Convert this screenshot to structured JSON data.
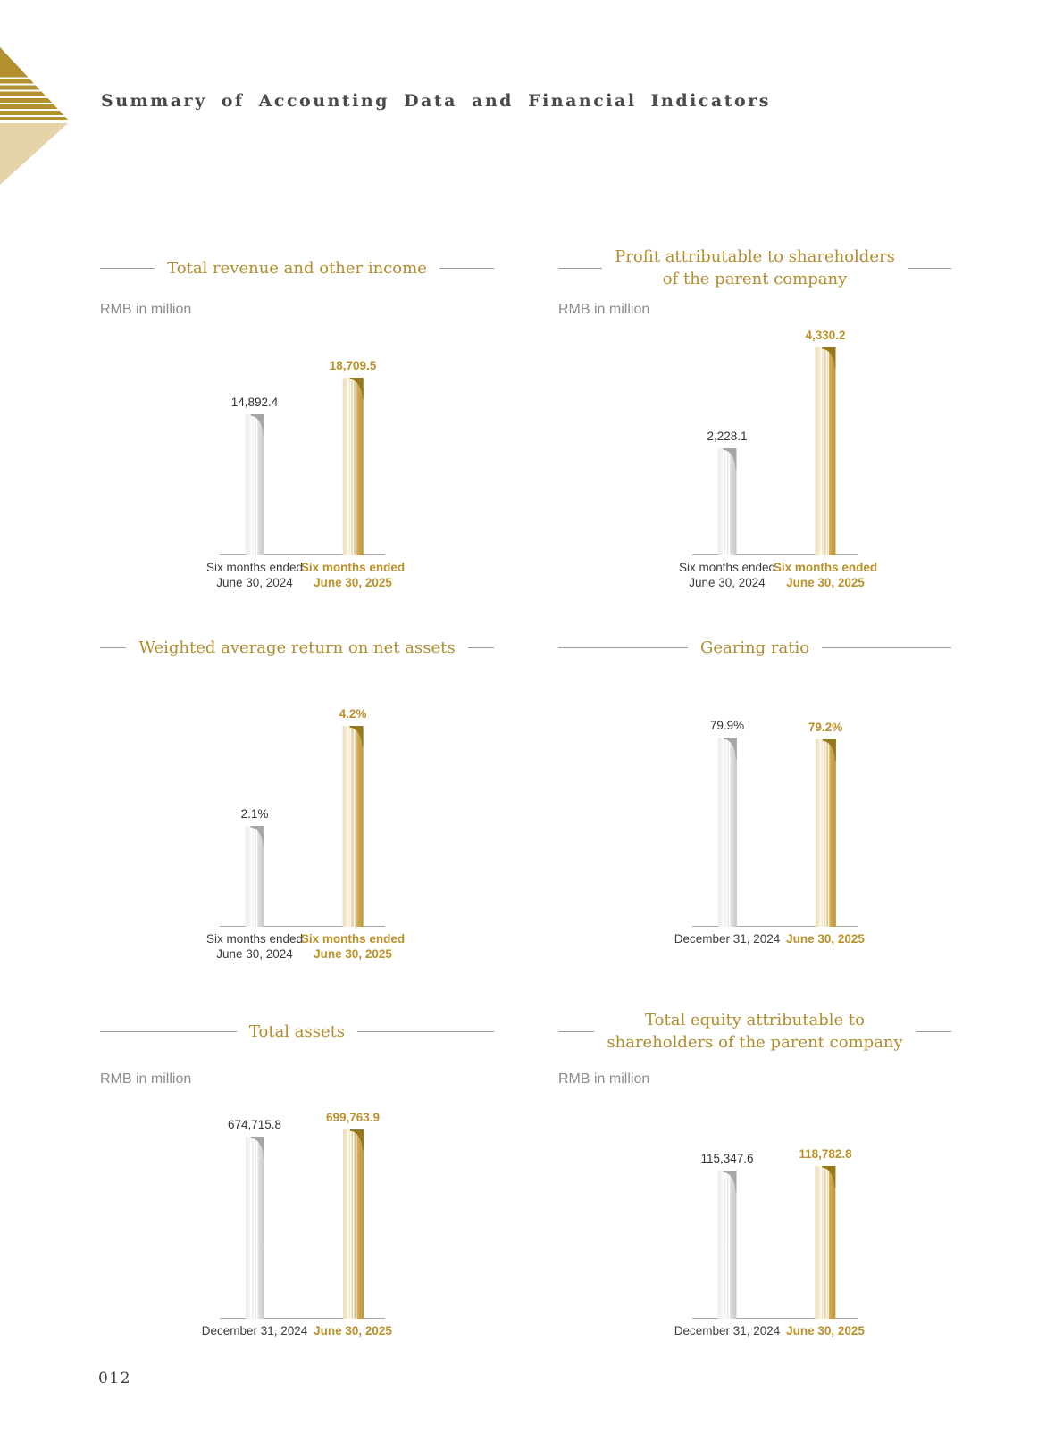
{
  "page": {
    "title": "Summary of Accounting Data and Financial Indicators",
    "page_number": "012"
  },
  "colors": {
    "accent_gold": "#b28d2e",
    "gold_text": "#bb9128",
    "bar_gold_light": "#f6eed8",
    "bar_gold_dark": "#bd973c",
    "bar_gold_curl": "#97781c",
    "bar_gray_light": "#f6f6f6",
    "bar_gray_dark": "#c6c6c6",
    "bar_gray_curl": "#a6a6a6",
    "heading_text": "#4a4a4a",
    "body_text": "#3c3c3c",
    "muted_text": "#8c8c8c",
    "deco_gold": "#b39030",
    "deco_tan": "#e5d3a9"
  },
  "chart_data": [
    {
      "type": "bar",
      "title": "Total revenue and other income",
      "title_lines": [
        "Total revenue and other income"
      ],
      "unit": "RMB in million",
      "categories": [
        [
          "Six months ended",
          "June 30, 2024"
        ],
        [
          "Six months ended",
          "June 30, 2025"
        ]
      ],
      "values": [
        14892.4,
        18709.5
      ],
      "value_labels": [
        "14,892.4",
        "18,709.5"
      ]
    },
    {
      "type": "bar",
      "title": "Profit attributable to shareholders of the parent company",
      "title_lines": [
        "Profit attributable to shareholders",
        "of the parent company"
      ],
      "unit": "RMB in million",
      "categories": [
        [
          "Six months ended",
          "June 30, 2024"
        ],
        [
          "Six months ended",
          "June 30, 2025"
        ]
      ],
      "values": [
        2228.1,
        4330.2
      ],
      "value_labels": [
        "2,228.1",
        "4,330.2"
      ]
    },
    {
      "type": "bar",
      "title": "Weighted average return on net assets",
      "title_lines": [
        "Weighted average return on net assets"
      ],
      "categories": [
        [
          "Six months ended",
          "June 30, 2024"
        ],
        [
          "Six months ended",
          "June 30, 2025"
        ]
      ],
      "values": [
        2.1,
        4.2
      ],
      "value_labels": [
        "2.1%",
        "4.2%"
      ]
    },
    {
      "type": "bar",
      "title": "Gearing ratio",
      "title_lines": [
        "Gearing ratio"
      ],
      "categories": [
        [
          "December 31, 2024"
        ],
        [
          "June 30, 2025"
        ]
      ],
      "values": [
        79.9,
        79.2
      ],
      "value_labels": [
        "79.9%",
        "79.2%"
      ]
    },
    {
      "type": "bar",
      "title": "Total assets",
      "title_lines": [
        "Total assets"
      ],
      "unit": "RMB in million",
      "categories": [
        [
          "December 31, 2024"
        ],
        [
          "June 30, 2025"
        ]
      ],
      "values": [
        674715.8,
        699763.9
      ],
      "value_labels": [
        "674,715.8",
        "699,763.9"
      ]
    },
    {
      "type": "bar",
      "title": "Total equity attributable to shareholders of the parent company",
      "title_lines": [
        "Total equity attributable to",
        "shareholders of the parent company"
      ],
      "unit": "RMB in million",
      "categories": [
        [
          "December 31, 2024"
        ],
        [
          "June 30, 2025"
        ]
      ],
      "values": [
        115347.6,
        118782.8
      ],
      "value_labels": [
        "115,347.6",
        "118,782.8"
      ]
    }
  ]
}
